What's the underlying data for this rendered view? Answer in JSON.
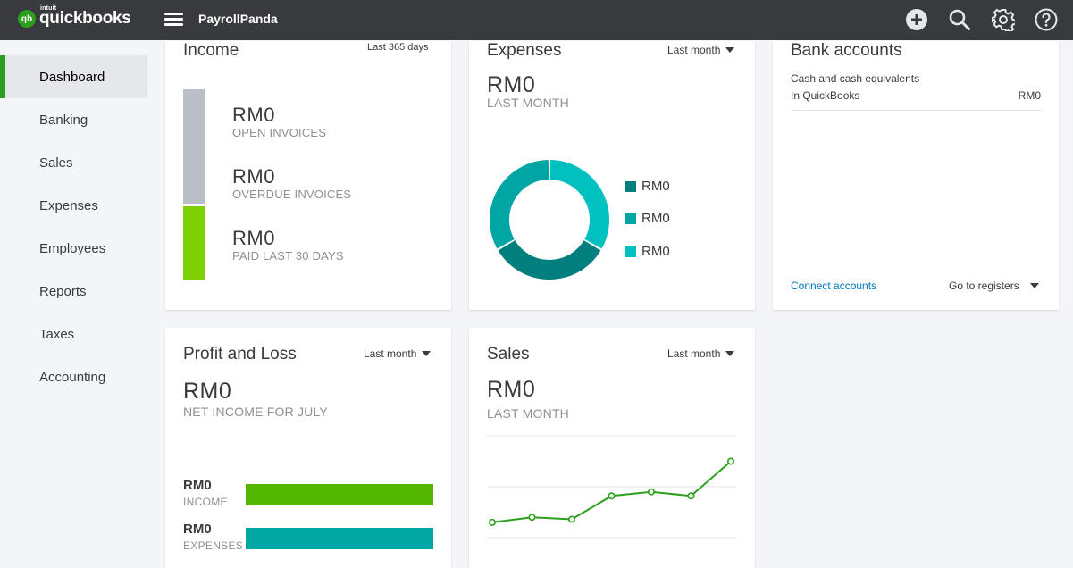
{
  "topbar": {
    "logo_mark": "qb",
    "logo_small": "intuit",
    "logo_main": "quickbooks",
    "company": "PayrollPanda",
    "icons": [
      "plus-circle-icon",
      "search-icon",
      "gear-icon",
      "help-icon"
    ]
  },
  "sidebar": {
    "items": [
      {
        "label": "Dashboard",
        "active": true
      },
      {
        "label": "Banking"
      },
      {
        "label": "Sales"
      },
      {
        "label": "Expenses"
      },
      {
        "label": "Employees"
      },
      {
        "label": "Reports"
      },
      {
        "label": "Taxes"
      },
      {
        "label": "Accounting"
      }
    ]
  },
  "income": {
    "title": "Income",
    "period": "Last 365 days",
    "open_value": "RM0",
    "open_label": "OPEN INVOICES",
    "overdue_value": "RM0",
    "overdue_label": "OVERDUE INVOICES",
    "paid_value": "RM0",
    "paid_label": "PAID LAST 30 DAYS",
    "colors": {
      "unpaid": "#babec5",
      "paid": "#7fd000"
    }
  },
  "expenses": {
    "title": "Expenses",
    "period": "Last month",
    "value": "RM0",
    "sub": "LAST MONTH",
    "legend": [
      {
        "value": "RM0",
        "color": "#007f7e"
      },
      {
        "value": "RM0",
        "color": "#00a6a4"
      },
      {
        "value": "RM0",
        "color": "#00c1bf"
      }
    ],
    "donut_colors": [
      "#00c1bf",
      "#007f7e",
      "#00a6a4"
    ]
  },
  "bank": {
    "title": "Bank accounts",
    "section": "Cash and cash equivalents",
    "row_label": "In QuickBooks",
    "row_value": "RM0",
    "connect": "Connect accounts",
    "registers": "Go to registers"
  },
  "pnl": {
    "title": "Profit and Loss",
    "period": "Last month",
    "value": "RM0",
    "sub": "NET INCOME FOR JULY",
    "income_value": "RM0",
    "income_label": "INCOME",
    "expenses_value": "RM0",
    "expenses_label": "EXPENSES",
    "colors": {
      "income": "#53b700",
      "expenses": "#00a6a4"
    }
  },
  "sales": {
    "title": "Sales",
    "period": "Last month",
    "value": "RM0",
    "sub": "LAST MONTH",
    "line_color": "#2ca01c"
  },
  "chart_data": {
    "type": "line",
    "title": "",
    "xlabel": "",
    "ylabel": "",
    "grid": true,
    "series": [
      {
        "values": [
          1.5,
          2.0,
          1.8,
          4.1,
          4.5,
          4.1,
          7.5
        ]
      }
    ],
    "ylim": [
      0,
      10
    ]
  }
}
